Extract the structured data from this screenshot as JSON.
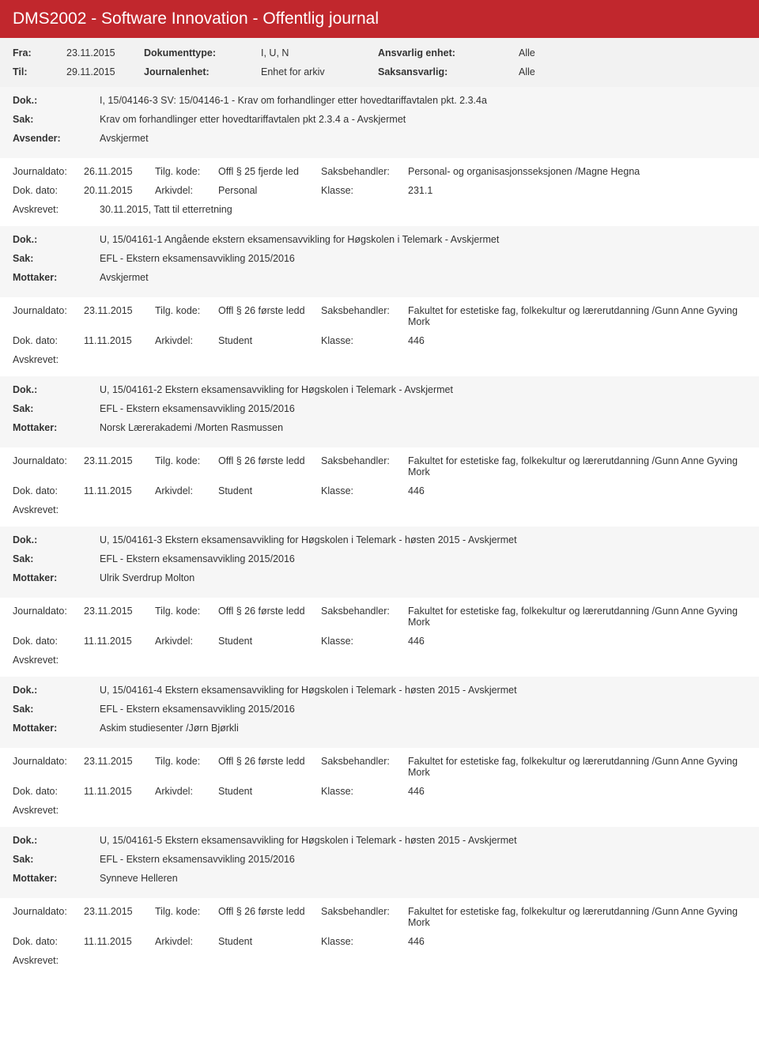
{
  "header": {
    "title": "DMS2002 - Software Innovation - Offentlig journal"
  },
  "filter": {
    "fra_label": "Fra:",
    "fra_value": "23.11.2015",
    "til_label": "Til:",
    "til_value": "29.11.2015",
    "doktype_label": "Dokumenttype:",
    "doktype_value": "I, U, N",
    "journalenhet_label": "Journalenhet:",
    "journalenhet_value": "Enhet for arkiv",
    "ansvarlig_label": "Ansvarlig enhet:",
    "ansvarlig_value": "Alle",
    "saksansvarlig_label": "Saksansvarlig:",
    "saksansvarlig_value": "Alle"
  },
  "labels": {
    "dok": "Dok.:",
    "sak": "Sak:",
    "avsender": "Avsender:",
    "mottaker": "Mottaker:",
    "journaldato": "Journaldato:",
    "tilgkode": "Tilg. kode:",
    "saksbehandler": "Saksbehandler:",
    "dokdato": "Dok. dato:",
    "arkivdel": "Arkivdel:",
    "klasse": "Klasse:",
    "avskrevet": "Avskrevet:"
  },
  "entries": [
    {
      "dok": "I, 15/04146-3 SV: 15/04146-1 - Krav om forhandlinger etter hovedtariffavtalen pkt. 2.3.4a",
      "sak": "Krav om forhandlinger etter hovedtariffavtalen pkt 2.3.4 a - Avskjermet",
      "party_label": "Avsender:",
      "party": "Avskjermet",
      "journaldato": "26.11.2015",
      "tilgkode": "Offl § 25 fjerde led",
      "saksbehandler": "Personal- og organisasjonsseksjonen /Magne Hegna",
      "dokdato": "20.11.2015",
      "arkivdel": "Personal",
      "klasse": "231.1",
      "avskrevet": "30.11.2015, Tatt til etterretning"
    },
    {
      "dok": "U, 15/04161-1 Angående ekstern eksamensavvikling for Høgskolen i Telemark - Avskjermet",
      "sak": "EFL - Ekstern eksamensavvikling 2015/2016",
      "party_label": "Mottaker:",
      "party": "Avskjermet",
      "journaldato": "23.11.2015",
      "tilgkode": "Offl § 26 første ledd",
      "saksbehandler": "Fakultet for estetiske fag, folkekultur og lærerutdanning /Gunn Anne Gyving Mork",
      "dokdato": "11.11.2015",
      "arkivdel": "Student",
      "klasse": "446",
      "avskrevet": ""
    },
    {
      "dok": "U, 15/04161-2 Ekstern eksamensavvikling for Høgskolen i Telemark - Avskjermet",
      "sak": "EFL - Ekstern eksamensavvikling 2015/2016",
      "party_label": "Mottaker:",
      "party": "Norsk Lærerakademi /Morten Rasmussen",
      "journaldato": "23.11.2015",
      "tilgkode": "Offl § 26 første ledd",
      "saksbehandler": "Fakultet for estetiske fag, folkekultur og lærerutdanning /Gunn Anne Gyving Mork",
      "dokdato": "11.11.2015",
      "arkivdel": "Student",
      "klasse": "446",
      "avskrevet": ""
    },
    {
      "dok": "U, 15/04161-3 Ekstern eksamensavvikling for Høgskolen i Telemark - høsten 2015 - Avskjermet",
      "sak": "EFL - Ekstern eksamensavvikling 2015/2016",
      "party_label": "Mottaker:",
      "party": "Ulrik Sverdrup Molton",
      "journaldato": "23.11.2015",
      "tilgkode": "Offl § 26 første ledd",
      "saksbehandler": "Fakultet for estetiske fag, folkekultur og lærerutdanning /Gunn Anne Gyving Mork",
      "dokdato": "11.11.2015",
      "arkivdel": "Student",
      "klasse": "446",
      "avskrevet": ""
    },
    {
      "dok": "U, 15/04161-4 Ekstern eksamensavvikling for Høgskolen i Telemark - høsten 2015 - Avskjermet",
      "sak": "EFL - Ekstern eksamensavvikling 2015/2016",
      "party_label": "Mottaker:",
      "party": "Askim studiesenter /Jørn Bjørkli",
      "journaldato": "23.11.2015",
      "tilgkode": "Offl § 26 første ledd",
      "saksbehandler": "Fakultet for estetiske fag, folkekultur og lærerutdanning /Gunn Anne Gyving Mork",
      "dokdato": "11.11.2015",
      "arkivdel": "Student",
      "klasse": "446",
      "avskrevet": ""
    },
    {
      "dok": "U, 15/04161-5 Ekstern eksamensavvikling for Høgskolen i Telemark - høsten 2015 - Avskjermet",
      "sak": "EFL - Ekstern eksamensavvikling 2015/2016",
      "party_label": "Mottaker:",
      "party": "Synneve Helleren",
      "journaldato": "23.11.2015",
      "tilgkode": "Offl § 26 første ledd",
      "saksbehandler": "Fakultet for estetiske fag, folkekultur og lærerutdanning /Gunn Anne Gyving Mork",
      "dokdato": "11.11.2015",
      "arkivdel": "Student",
      "klasse": "446",
      "avskrevet": ""
    }
  ]
}
